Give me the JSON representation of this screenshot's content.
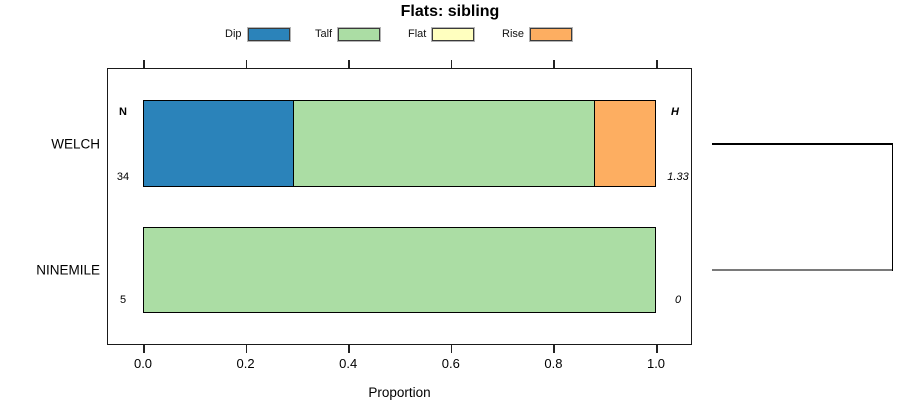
{
  "title": "Flats: sibling",
  "xlabel": "Proportion",
  "legend": {
    "items": [
      {
        "label": "Dip",
        "color": "#2B83BA"
      },
      {
        "label": "Talf",
        "color": "#ABDDA4"
      },
      {
        "label": "Flat",
        "color": "#FFFFBF"
      },
      {
        "label": "Rise",
        "color": "#FDAE61"
      }
    ]
  },
  "columns": {
    "left_header": "N",
    "right_header": "H"
  },
  "chart_data": {
    "type": "bar",
    "orientation": "horizontal",
    "stacked": true,
    "title": "Flats: sibling",
    "xlabel": "Proportion",
    "xlim": [
      0,
      1
    ],
    "xticks": [
      0.0,
      0.2,
      0.4,
      0.6,
      0.8,
      1.0
    ],
    "xtick_labels": [
      "0.0",
      "0.2",
      "0.4",
      "0.6",
      "0.8",
      "1.0"
    ],
    "grid": false,
    "legend_position": "top",
    "categories": [
      "Dip",
      "Talf",
      "Flat",
      "Rise"
    ],
    "colors": [
      "#2B83BA",
      "#ABDDA4",
      "#FFFFBF",
      "#FDAE61"
    ],
    "rows": [
      {
        "label": "WELCH",
        "N": 34,
        "N_display": "34",
        "H": 1.33,
        "H_display": "1.33",
        "values": [
          0.294,
          0.588,
          0,
          0.118
        ]
      },
      {
        "label": "NINEMILE",
        "N": 5,
        "N_display": "5",
        "H": 0,
        "H_display": "0",
        "values": [
          0,
          1.0,
          0,
          0
        ]
      }
    ],
    "right_annotation": "bracket joining WELCH and NINEMILE rows"
  }
}
